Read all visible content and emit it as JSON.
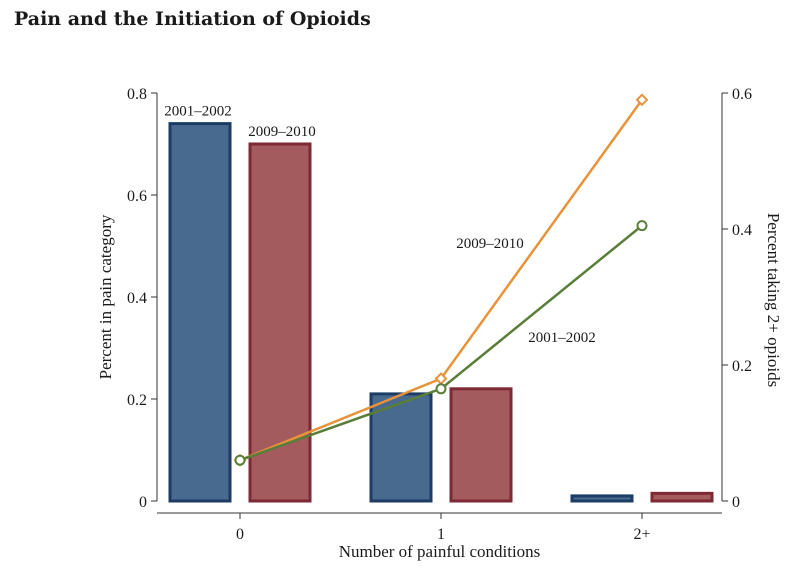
{
  "title": "Pain and the Initiation of Opioids",
  "colors": {
    "bar_2001": "#486a8e",
    "bar_2001_edge": "#1d3d66",
    "bar_2009": "#a35b5e",
    "bar_2009_edge": "#7e2a34",
    "line_2009": "#e8923a",
    "line_2001": "#5a7e3a"
  },
  "chart_data": {
    "type": "bar+line",
    "categories": [
      "0",
      "1",
      "2+"
    ],
    "xlabel": "Number of painful conditions",
    "ylabel_left": "Percent in pain category",
    "ylabel_right": "Percent taking 2+ opioids",
    "ylim_left": [
      0,
      0.8
    ],
    "ylim_right": [
      0,
      0.6
    ],
    "yticks_left": [
      0,
      0.2,
      0.4,
      0.6,
      0.8
    ],
    "yticks_left_labels": [
      "0",
      "0.2",
      "0.4",
      "0.6",
      "0.8"
    ],
    "yticks_right": [
      0,
      0.2,
      0.4,
      0.6
    ],
    "yticks_right_labels": [
      "0",
      "0.2",
      "0.4",
      "0.6"
    ],
    "bar_series": [
      {
        "name": "2001–2002",
        "values": [
          0.74,
          0.21,
          0.01
        ]
      },
      {
        "name": "2009–2010",
        "values": [
          0.7,
          0.22,
          0.015
        ]
      }
    ],
    "line_series": [
      {
        "name": "2009–2010",
        "marker": "diamond",
        "values": [
          0.06,
          0.18,
          0.59
        ]
      },
      {
        "name": "2001–2002",
        "marker": "circle",
        "values": [
          0.06,
          0.165,
          0.405
        ]
      }
    ],
    "annotations": {
      "bar_2001": "2001–2002",
      "bar_2009": "2009–2010",
      "line_2009": "2009–2010",
      "line_2001": "2001–2002"
    },
    "grid": false
  }
}
